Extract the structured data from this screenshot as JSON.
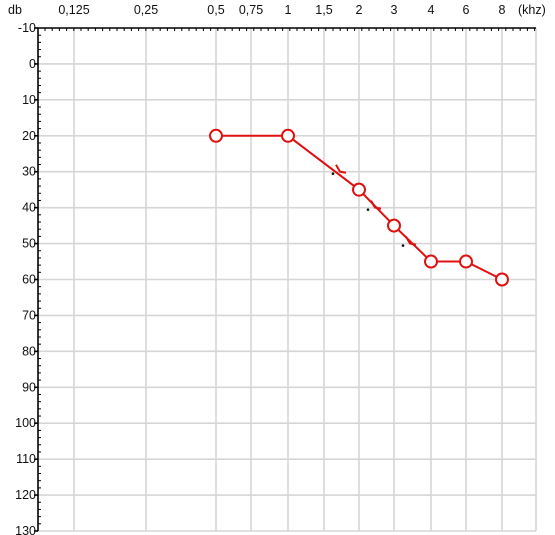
{
  "chart_data": {
    "type": "line",
    "title": "",
    "x_unit_label": "(khz)",
    "y_unit_label": "db",
    "x_ticks": [
      "0,125",
      "0,25",
      "0,5",
      "0,75",
      "1",
      "1,5",
      "2",
      "3",
      "4",
      "6",
      "8"
    ],
    "y_ticks": [
      "-10",
      "0",
      "10",
      "20",
      "30",
      "40",
      "50",
      "60",
      "70",
      "80",
      "90",
      "100",
      "110",
      "120",
      "130"
    ],
    "ylim": [
      -10,
      130
    ],
    "y_inverted": true,
    "grid": true,
    "series_color": "#e01010",
    "series": [
      {
        "x": [
          "0,5",
          "1",
          "2",
          "3",
          "4",
          "6",
          "8"
        ],
        "y": [
          20,
          20,
          35,
          45,
          55,
          55,
          60
        ]
      }
    ],
    "annotations": [
      {
        "shape": "chevron-mark",
        "x": "1,5",
        "y": 30
      },
      {
        "shape": "chevron-mark",
        "x": "2",
        "y": 40
      },
      {
        "shape": "chevron-mark",
        "x": "3",
        "y": 50
      }
    ]
  }
}
